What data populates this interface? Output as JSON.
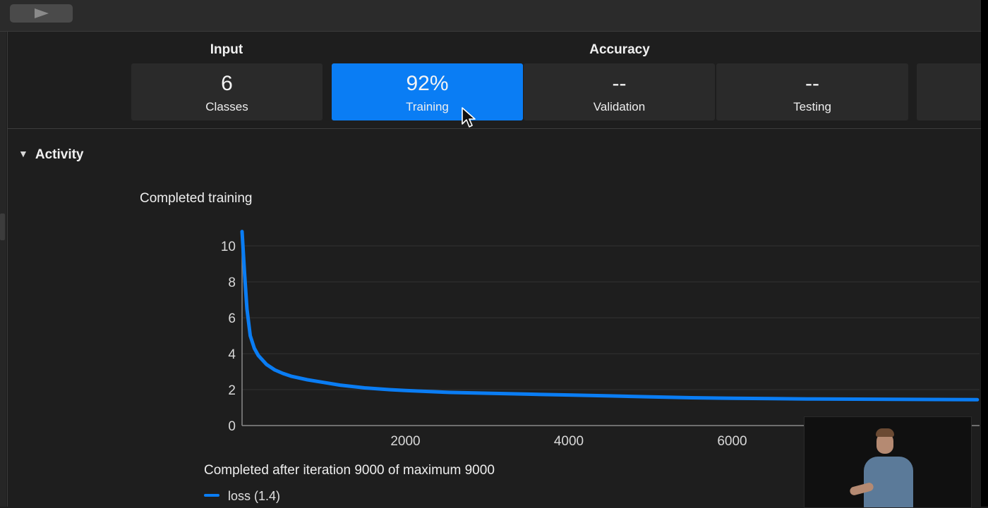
{
  "header": {
    "input_label": "Input",
    "accuracy_label": "Accuracy"
  },
  "metrics": [
    {
      "value": "6",
      "caption": "Classes",
      "selected": false
    },
    {
      "value": "92%",
      "caption": "Training",
      "selected": true
    },
    {
      "value": "--",
      "caption": "Validation",
      "selected": false
    },
    {
      "value": "--",
      "caption": "Testing",
      "selected": false
    }
  ],
  "activity": {
    "title": "Activity",
    "status": "Completed training",
    "summary": "Completed after iteration 9000 of maximum 9000"
  },
  "chart_data": {
    "type": "line",
    "title": "",
    "xlabel": "",
    "ylabel": "",
    "xlim": [
      0,
      9000
    ],
    "ylim": [
      0,
      10
    ],
    "x_ticks": [
      2000,
      4000,
      6000
    ],
    "y_ticks": [
      0,
      2,
      4,
      6,
      8,
      10
    ],
    "grid": true,
    "series": [
      {
        "name": "loss (1.4)",
        "color": "#0a7df4",
        "x": [
          0,
          30,
          60,
          100,
          150,
          200,
          300,
          400,
          500,
          600,
          800,
          1000,
          1200,
          1500,
          1800,
          2000,
          2500,
          3000,
          3500,
          4000,
          4500,
          5000,
          5500,
          6000,
          6500,
          7000,
          7500,
          8000,
          8500,
          9000
        ],
        "y": [
          10.8,
          8.5,
          6.5,
          5.0,
          4.3,
          3.9,
          3.4,
          3.1,
          2.9,
          2.75,
          2.55,
          2.4,
          2.25,
          2.1,
          2.0,
          1.95,
          1.85,
          1.8,
          1.75,
          1.7,
          1.65,
          1.6,
          1.55,
          1.52,
          1.5,
          1.48,
          1.47,
          1.46,
          1.45,
          1.44
        ]
      }
    ]
  },
  "legend": {
    "label": "loss (1.4)"
  },
  "icons": {
    "play": "play-icon",
    "disclosure": "disclosure-triangle-icon",
    "cursor": "mouse-pointer-icon"
  },
  "colors": {
    "accent": "#0a7df4",
    "background": "#1e1e1e",
    "card": "#2a2a2a"
  }
}
